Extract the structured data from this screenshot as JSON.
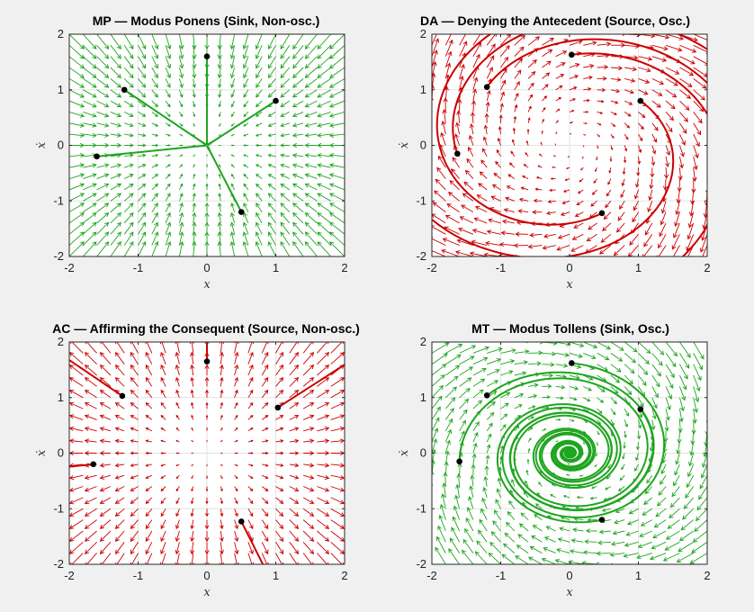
{
  "figure": {
    "background": "#f0f0f0",
    "xlabel": "x",
    "ylabel": "ẋ",
    "xticks": [
      "-2",
      "-1",
      "0",
      "1",
      "2"
    ],
    "yticks": [
      "2",
      "1",
      "0",
      "-1",
      "-2"
    ]
  },
  "chart_data": [
    {
      "type": "vector-field",
      "title": "MP — Modus Ponens (Sink, Non-osc.)",
      "xlabel": "x",
      "ylabel": "ẋ",
      "xlim": [
        -2,
        2
      ],
      "ylim": [
        -2,
        2
      ],
      "grid": true,
      "field": "sink",
      "oscillatory": false,
      "color": "#1fa51f",
      "initial_points": [
        [
          0,
          1.6
        ],
        [
          -1.2,
          1.0
        ],
        [
          1.0,
          0.8
        ],
        [
          -1.6,
          -0.2
        ],
        [
          0.5,
          -1.2
        ]
      ]
    },
    {
      "type": "vector-field",
      "title": "DA — Denying the Antecedent (Source, Osc.)",
      "xlabel": "x",
      "ylabel": "ẋ",
      "xlim": [
        -2,
        2
      ],
      "ylim": [
        -2,
        2
      ],
      "grid": true,
      "field": "source",
      "oscillatory": true,
      "color": "#cc0000",
      "initial_points": [
        [
          0.03,
          1.63
        ],
        [
          -1.2,
          1.05
        ],
        [
          1.03,
          0.8
        ],
        [
          -1.63,
          -0.15
        ],
        [
          0.47,
          -1.22
        ]
      ]
    },
    {
      "type": "vector-field",
      "title": "AC — Affirming the Consequent (Source, Non-osc.)",
      "xlabel": "x",
      "ylabel": "ẋ",
      "xlim": [
        -2,
        2
      ],
      "ylim": [
        -2,
        2
      ],
      "grid": true,
      "field": "source",
      "oscillatory": false,
      "color": "#cc0000",
      "initial_points": [
        [
          0,
          1.65
        ],
        [
          -1.23,
          1.03
        ],
        [
          1.03,
          0.82
        ],
        [
          -1.65,
          -0.2
        ],
        [
          0.5,
          -1.23
        ]
      ]
    },
    {
      "type": "vector-field",
      "title": "MT — Modus Tollens (Sink, Osc.)",
      "xlabel": "x",
      "ylabel": "ẋ",
      "xlim": [
        -2,
        2
      ],
      "ylim": [
        -2,
        2
      ],
      "grid": true,
      "field": "sink",
      "oscillatory": true,
      "color": "#1fa51f",
      "initial_points": [
        [
          0.03,
          1.62
        ],
        [
          -1.2,
          1.04
        ],
        [
          1.03,
          0.79
        ],
        [
          -1.6,
          -0.15
        ],
        [
          0.47,
          -1.2
        ]
      ]
    }
  ]
}
